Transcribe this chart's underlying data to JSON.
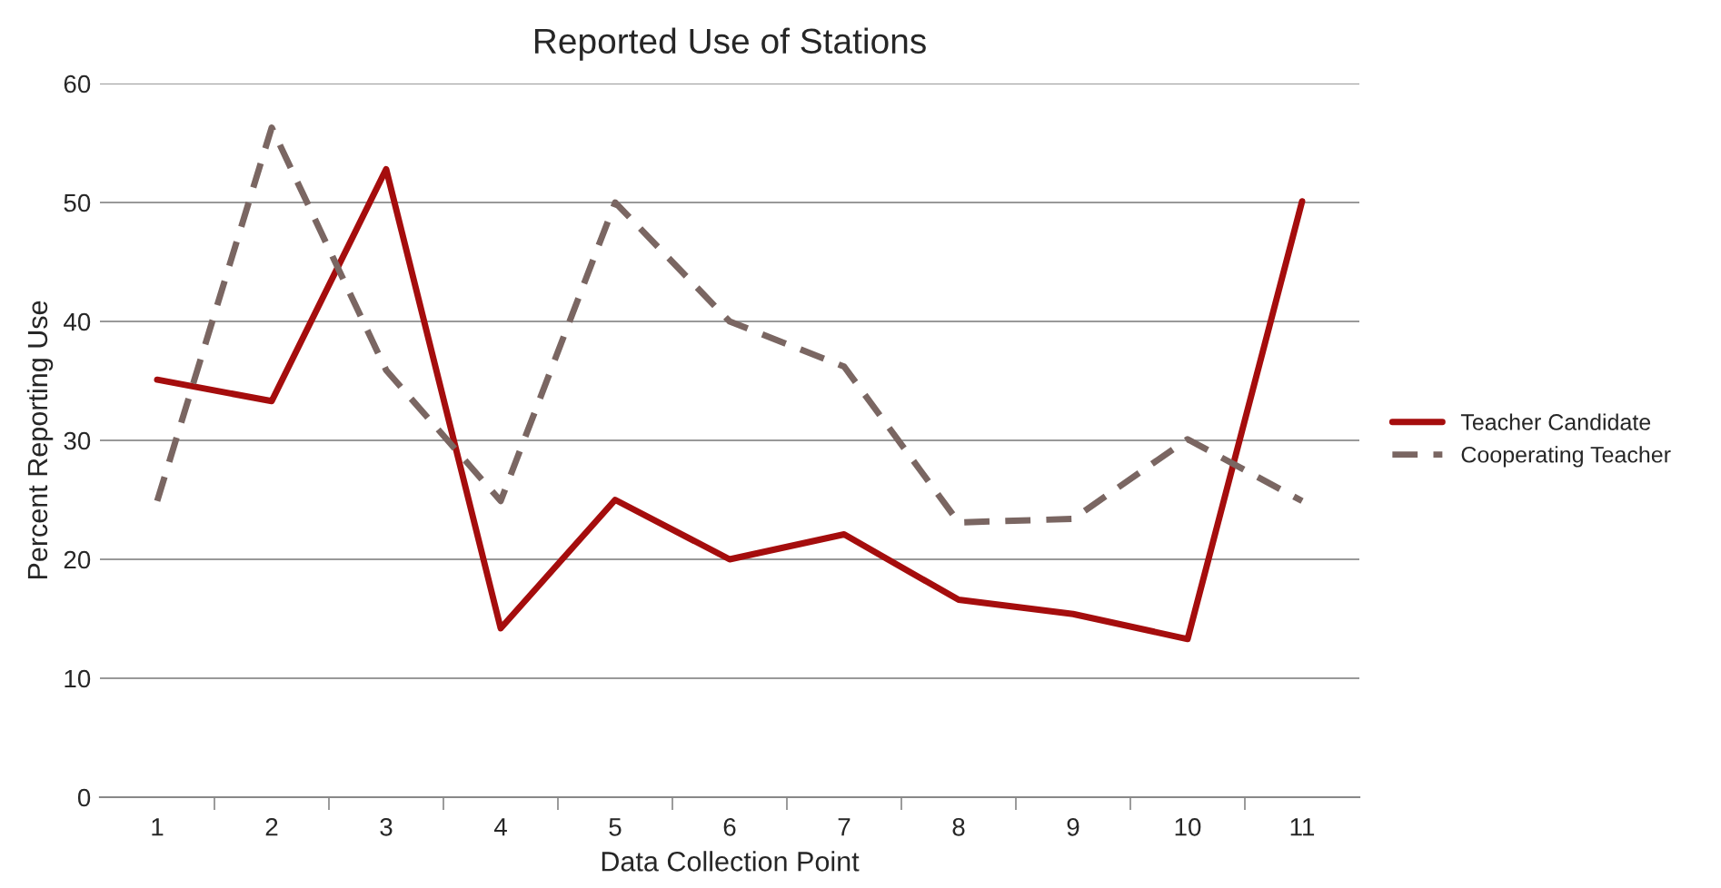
{
  "chart_data": {
    "type": "line",
    "title": "Reported Use of Stations",
    "xlabel": "Data Collection Point",
    "ylabel": "Percent Reporting Use",
    "categories": [
      "1",
      "2",
      "3",
      "4",
      "5",
      "6",
      "7",
      "8",
      "9",
      "10",
      "11"
    ],
    "series": [
      {
        "name": "Teacher Candidate",
        "color": "#a50d0d",
        "line_style": "solid",
        "values": [
          35.1,
          33.3,
          52.8,
          14.2,
          25.0,
          20.0,
          22.1,
          16.6,
          15.4,
          13.3,
          50.1
        ]
      },
      {
        "name": "Cooperating Teacher",
        "color": "#7a6662",
        "line_style": "dashed",
        "values": [
          24.9,
          56.3,
          35.9,
          24.9,
          50.0,
          40.0,
          36.2,
          23.1,
          23.4,
          30.1,
          24.9
        ]
      }
    ],
    "ylim": [
      0,
      60
    ],
    "yticks": [
      0,
      10,
      20,
      30,
      40,
      50,
      60
    ],
    "grid": "y",
    "legend": "right",
    "marker": "none"
  }
}
